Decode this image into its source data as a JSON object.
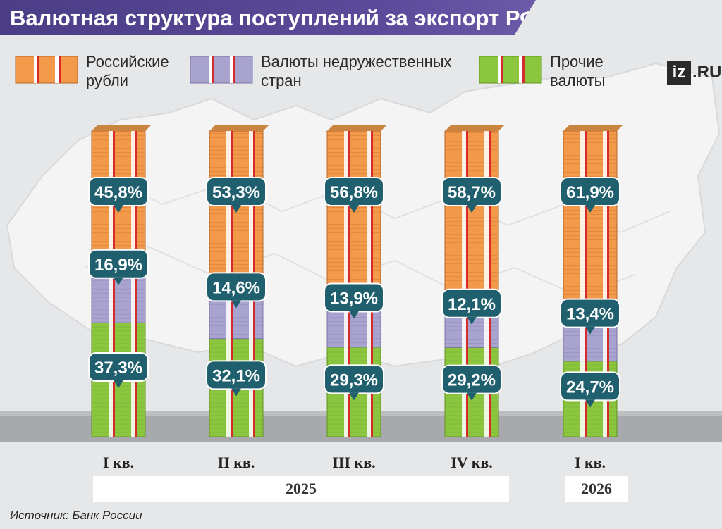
{
  "title": "Валютная структура поступлений за экспорт РФ",
  "logo": {
    "mark": "iz",
    "suffix": ".RU"
  },
  "source": "Источник: Банк России",
  "colors": {
    "rub": "#f2994a",
    "unfriendly": "#a9a3cf",
    "other": "#8cc63f",
    "bubble": "#1f5f6e",
    "title_bg": "#4b3d86"
  },
  "legend": [
    {
      "label": "Российские\nрубли",
      "color": "#f2994a",
      "icon": "orange-money-stack-icon"
    },
    {
      "label": "Валюты недружественных\nстран",
      "color": "#a9a3cf",
      "icon": "purple-money-stack-icon"
    },
    {
      "label": "Прочие\nвалюты",
      "color": "#8cc63f",
      "icon": "green-money-stack-icon"
    }
  ],
  "years": [
    {
      "label": "2025"
    },
    {
      "label": "2026"
    }
  ],
  "chart_data": {
    "type": "bar",
    "stacked": true,
    "categories": [
      "I кв.",
      "II кв.",
      "III кв.",
      "IV кв.",
      "I кв."
    ],
    "series": [
      {
        "name": "Прочие валюты",
        "values": [
          37.3,
          32.1,
          29.3,
          29.2,
          24.7
        ],
        "labels": [
          "37,3%",
          "32,1%",
          "29,3%",
          "29,2%",
          "24,7%"
        ]
      },
      {
        "name": "Валюты недружественных стран",
        "values": [
          16.9,
          14.6,
          13.9,
          12.1,
          13.4
        ],
        "labels": [
          "16,9%",
          "14,6%",
          "13,9%",
          "12,1%",
          "13,4%"
        ]
      },
      {
        "name": "Российские рубли",
        "values": [
          45.8,
          53.3,
          56.8,
          58.7,
          61.9
        ],
        "labels": [
          "45,8%",
          "53,3%",
          "56,8%",
          "58,7%",
          "61,9%"
        ]
      }
    ],
    "ylim": [
      0,
      100
    ],
    "grid": false,
    "legend_position": "top"
  }
}
